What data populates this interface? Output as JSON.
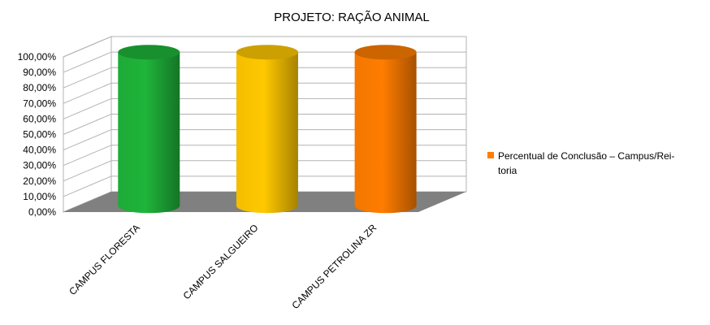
{
  "chart_data": {
    "type": "bar",
    "style": "3d-cylinder",
    "title": "PROJETO: RAÇÃO ANIMAL",
    "categories": [
      "CAMPUS FLORESTA",
      "CAMPUS SALGUEIRO",
      "CAMPUS PETROLINA ZR"
    ],
    "series": [
      {
        "name": "Percentual de Conclusão – Campus/Reitoria",
        "values": [
          1.0,
          1.0,
          1.0
        ],
        "colors": [
          "#1fb43a",
          "#ffc800",
          "#ff7d00"
        ]
      }
    ],
    "y_tick_labels": [
      "0,00%",
      "10,00%",
      "20,00%",
      "30,00%",
      "40,00%",
      "50,00%",
      "60,00%",
      "70,00%",
      "80,00%",
      "90,00%",
      "100,00%"
    ],
    "ylim": [
      0,
      1
    ],
    "grid": true,
    "legend": {
      "position": "right",
      "lines": [
        "Percentual de Conclusão – Campus/Rei-",
        "toria"
      ],
      "color": "#ff7d00"
    },
    "floor_color": "#808080"
  }
}
